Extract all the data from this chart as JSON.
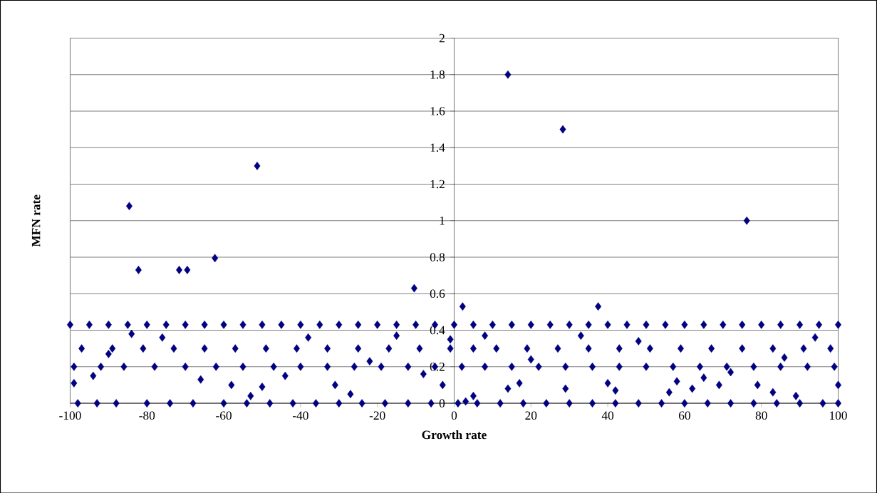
{
  "chart_data": {
    "type": "scatter",
    "xlabel": "Growth rate",
    "ylabel": "MFN rate",
    "color": "#000080",
    "marker": "diamond",
    "grid": "y",
    "xlim": [
      -100,
      100
    ],
    "ylim": [
      0,
      2
    ],
    "xticks": [
      -100,
      -80,
      -60,
      -40,
      -20,
      0,
      20,
      40,
      60,
      80,
      100
    ],
    "yticks": [
      0,
      0.2,
      0.4,
      0.6,
      0.8,
      1,
      1.2,
      1.4,
      1.6,
      1.8,
      2
    ],
    "x": [
      -84.6,
      -82.2,
      -71.6,
      -69.5,
      -62.3,
      -51.3,
      -10.4,
      2.2,
      14,
      28.3,
      37.5,
      76.2,
      -100,
      -95,
      -90,
      -85,
      -80,
      -75,
      -70,
      -65,
      -60,
      -55,
      -50,
      -45,
      -40,
      -35,
      -30,
      -25,
      -20,
      -15,
      -10,
      -5,
      0,
      5,
      10,
      15,
      20,
      25,
      30,
      35,
      40,
      45,
      50,
      55,
      60,
      65,
      70,
      75,
      80,
      85,
      90,
      95,
      100,
      -98,
      -93,
      -88,
      -80,
      -74,
      -68,
      -60,
      -54,
      -48,
      -42,
      -36,
      -30,
      -24,
      -18,
      -12,
      -6,
      1,
      6,
      12,
      18,
      24,
      30,
      36,
      42,
      48,
      54,
      60,
      66,
      72,
      78,
      84,
      90,
      96,
      100,
      -99,
      -92,
      -86,
      -78,
      -70,
      -62,
      -55,
      -47,
      -40,
      -33,
      -26,
      -19,
      -12,
      -5,
      2,
      8,
      15,
      22,
      29,
      36,
      43,
      50,
      57,
      64,
      71,
      78,
      85,
      92,
      99,
      -97,
      -89,
      -81,
      -73,
      -65,
      -57,
      -49,
      -41,
      -33,
      -25,
      -17,
      -9,
      -1,
      5,
      11,
      19,
      27,
      35,
      43,
      51,
      59,
      67,
      75,
      83,
      91,
      98,
      -99,
      -94,
      -90,
      -84,
      -76,
      -66,
      -58,
      -53,
      -50,
      -44,
      -38,
      -31,
      -27,
      -22,
      -15,
      -8,
      -3,
      -1,
      3,
      5,
      8,
      14,
      17,
      20,
      29,
      33,
      40,
      42,
      48,
      56,
      58,
      62,
      65,
      69,
      72,
      79,
      83,
      86,
      89,
      94,
      100
    ],
    "values": [
      1.08,
      0.73,
      0.73,
      0.73,
      0.795,
      1.3,
      0.63,
      0.53,
      1.8,
      1.5,
      0.53,
      1,
      0.43,
      0.43,
      0.43,
      0.43,
      0.43,
      0.43,
      0.43,
      0.43,
      0.43,
      0.43,
      0.43,
      0.43,
      0.43,
      0.43,
      0.43,
      0.43,
      0.43,
      0.43,
      0.43,
      0.43,
      0.43,
      0.43,
      0.43,
      0.43,
      0.43,
      0.43,
      0.43,
      0.43,
      0.43,
      0.43,
      0.43,
      0.43,
      0.43,
      0.43,
      0.43,
      0.43,
      0.43,
      0.43,
      0.43,
      0.43,
      0.43,
      0,
      0,
      0,
      0,
      0,
      0,
      0,
      0,
      0,
      0,
      0,
      0,
      0,
      0,
      0,
      0,
      0,
      0,
      0,
      0,
      0,
      0,
      0,
      0,
      0,
      0,
      0,
      0,
      0,
      0,
      0,
      0,
      0,
      0,
      0.2,
      0.2,
      0.2,
      0.2,
      0.2,
      0.2,
      0.2,
      0.2,
      0.2,
      0.2,
      0.2,
      0.2,
      0.2,
      0.2,
      0.2,
      0.2,
      0.2,
      0.2,
      0.2,
      0.2,
      0.2,
      0.2,
      0.2,
      0.2,
      0.2,
      0.2,
      0.2,
      0.2,
      0.2,
      0.3,
      0.3,
      0.3,
      0.3,
      0.3,
      0.3,
      0.3,
      0.3,
      0.3,
      0.3,
      0.3,
      0.3,
      0.3,
      0.3,
      0.3,
      0.3,
      0.3,
      0.3,
      0.3,
      0.3,
      0.3,
      0.3,
      0.3,
      0.3,
      0.3,
      0.3,
      0.11,
      0.15,
      0.27,
      0.38,
      0.36,
      0.13,
      0.1,
      0.04,
      0.09,
      0.15,
      0.36,
      0.1,
      0.05,
      0.23,
      0.37,
      0.16,
      0.1,
      0.35,
      0.01,
      0.04,
      0.37,
      0.08,
      0.11,
      0.24,
      0.08,
      0.37,
      0.11,
      0.07,
      0.34,
      0.06,
      0.12,
      0.08,
      0.14,
      0.1,
      0.17,
      0.1,
      0.06,
      0.25,
      0.04,
      0.36,
      0.1
    ]
  }
}
